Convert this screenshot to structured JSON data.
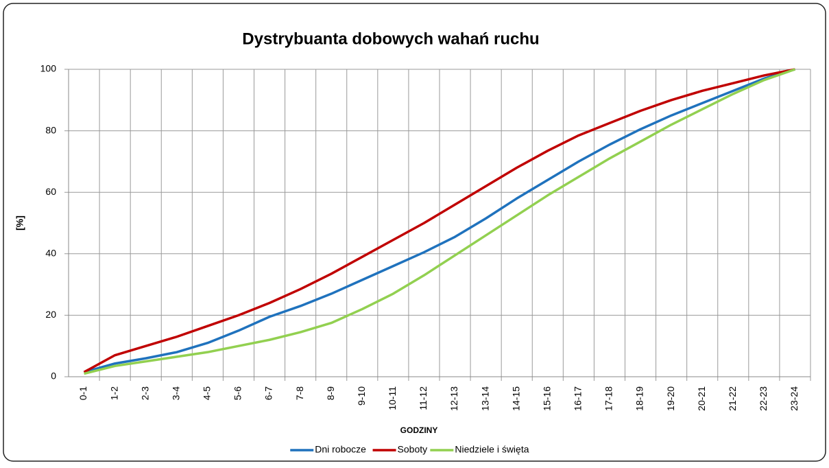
{
  "chart_data": {
    "type": "line",
    "title": "Dystrybuanta dobowych wahań ruchu",
    "x_label": "Godziny",
    "y_label": "[%]",
    "categories": [
      "0-1",
      "1-2",
      "2-3",
      "3-4",
      "4-5",
      "5-6",
      "6-7",
      "7-8",
      "8-9",
      "9-10",
      "10-11",
      "11-12",
      "12-13",
      "13-14",
      "14-15",
      "15-16",
      "16-17",
      "17-18",
      "18-19",
      "19-20",
      "20-21",
      "21-22",
      "22-23",
      "23-24"
    ],
    "series": [
      {
        "name": "Dni robocze",
        "color": "#1f72bd",
        "values": [
          1.5,
          4.3,
          6,
          8,
          11,
          15,
          19.5,
          23,
          27,
          31.5,
          36,
          40.5,
          45.5,
          51.5,
          58,
          64,
          70,
          75.5,
          80.5,
          85,
          89,
          93,
          97,
          100
        ]
      },
      {
        "name": "Soboty",
        "color": "#c00000",
        "values": [
          1.5,
          7,
          10,
          13,
          16.5,
          20,
          24,
          28.5,
          33.5,
          39,
          44.5,
          50,
          56,
          62,
          68,
          73.5,
          78.5,
          82.5,
          86.5,
          90,
          93,
          95.5,
          98,
          100
        ]
      },
      {
        "name": "Niedziele i święta",
        "color": "#92d050",
        "values": [
          1,
          3.5,
          5,
          6.5,
          8,
          10,
          12,
          14.5,
          17.5,
          22,
          27,
          33,
          39.5,
          46,
          52.5,
          59,
          65,
          71,
          76.5,
          82,
          87,
          92,
          96.5,
          100
        ]
      }
    ],
    "ylim": [
      0,
      100
    ],
    "yticks": [
      0,
      20,
      40,
      60,
      80,
      100
    ],
    "grid": true,
    "legend": "bottom"
  }
}
